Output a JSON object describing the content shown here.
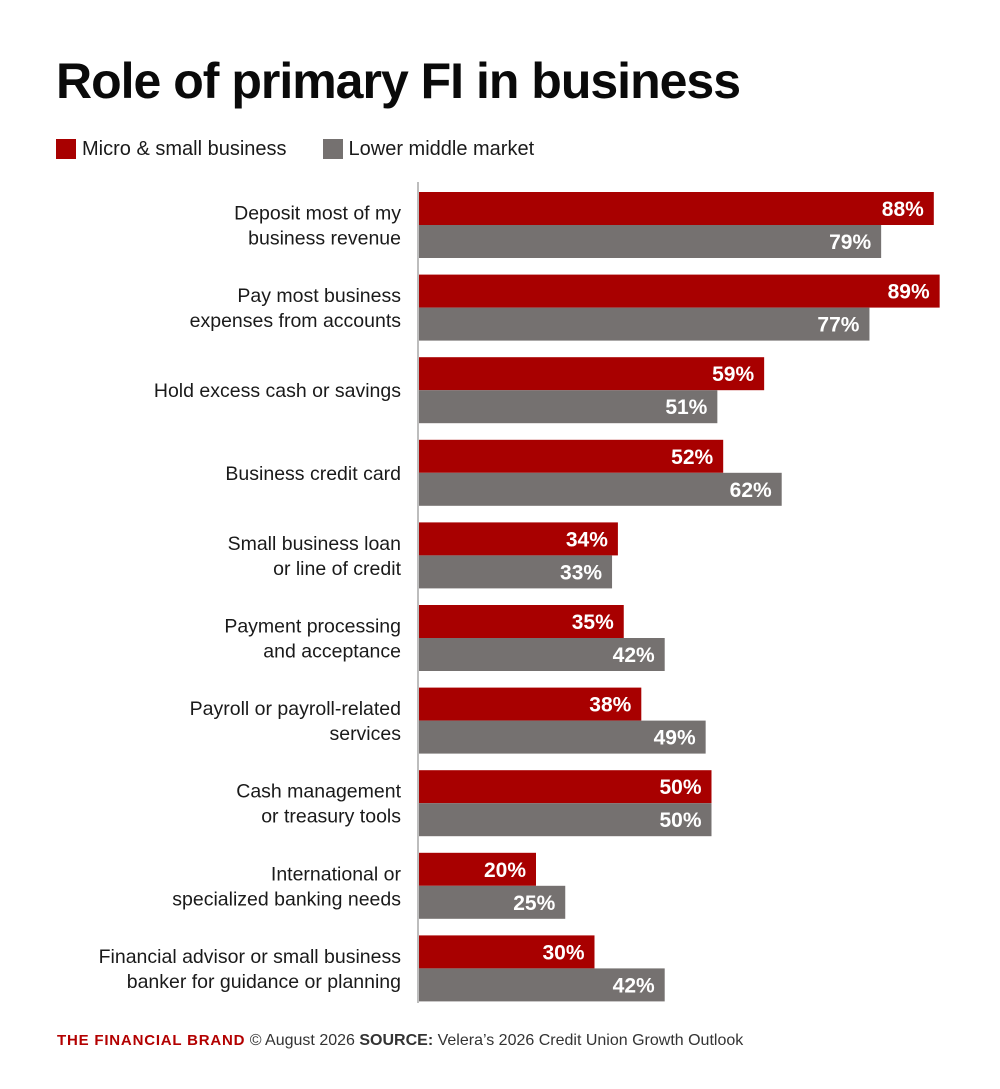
{
  "colors": {
    "series1": "#a80000",
    "series2": "#757170",
    "axis": "#bdbdbd",
    "label_text": "#ffffff",
    "category_text": "#1a1a1a"
  },
  "footer": {
    "brand": "THE FINANCIAL BRAND",
    "date": "© August 2026",
    "source_label": "SOURCE:",
    "source_text": "Velera’s 2026 Credit Union Growth Outlook"
  },
  "chart_data": {
    "type": "bar",
    "orientation": "horizontal",
    "title": "Role of primary FI in business",
    "legend_position": "top-left",
    "grid": false,
    "xlim": [
      0,
      100
    ],
    "unit": "%",
    "categories": [
      [
        "Deposit most of my",
        "business revenue"
      ],
      [
        "Pay most business",
        "expenses from accounts"
      ],
      [
        "Hold excess cash or savings"
      ],
      [
        "Business credit card"
      ],
      [
        "Small business loan",
        "or line of credit"
      ],
      [
        "Payment processing",
        "and acceptance"
      ],
      [
        "Payroll or payroll-related",
        "services"
      ],
      [
        "Cash management",
        "or treasury tools"
      ],
      [
        "International or",
        "specialized banking needs"
      ],
      [
        "Financial advisor or small business",
        "banker for guidance or planning"
      ]
    ],
    "series": [
      {
        "name": "Micro & small business",
        "values": [
          88,
          89,
          59,
          52,
          34,
          35,
          38,
          50,
          20,
          30
        ],
        "labels": [
          "88%",
          "89%",
          "59%",
          "52%",
          "34%",
          "35%",
          "38%",
          "50%",
          "20%",
          "30%"
        ]
      },
      {
        "name": "Lower middle market",
        "values": [
          79,
          77,
          51,
          62,
          33,
          42,
          49,
          50,
          25,
          42
        ],
        "labels": [
          "79%",
          "77%",
          "51%",
          "62%",
          "33%",
          "42%",
          "49%",
          "50%",
          "25%",
          "42%"
        ]
      }
    ]
  }
}
